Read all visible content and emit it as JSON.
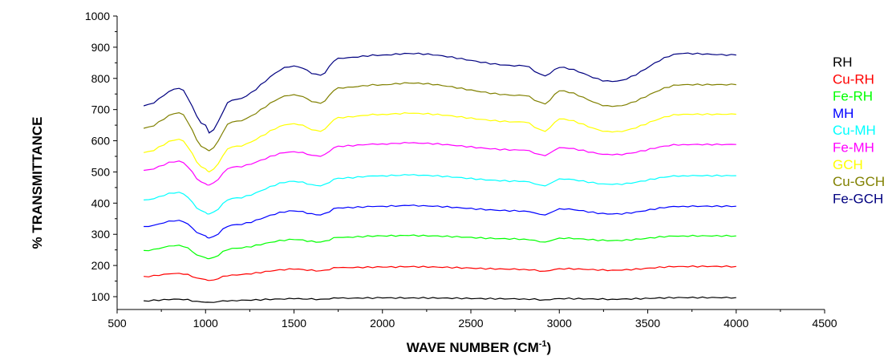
{
  "chart_data": {
    "type": "line",
    "title": "",
    "xlabel": "WAVE NUMBER (CM",
    "xlabel_sup": "-1",
    "xlabel_close": ")",
    "ylabel": "% TRANSMITTANCE",
    "xlim": [
      500,
      4500
    ],
    "ylim": [
      100,
      1000
    ],
    "x_ticks": [
      "500",
      "1000",
      "1500",
      "2000",
      "2500",
      "3000",
      "3500",
      "4000",
      "4500"
    ],
    "y_ticks": [
      "100",
      "200",
      "300",
      "400",
      "500",
      "600",
      "700",
      "800",
      "900",
      "1000"
    ],
    "grid": false,
    "legend_position": "right",
    "x": [
      650,
      850,
      1000,
      1020,
      1150,
      1500,
      1650,
      1750,
      2000,
      2150,
      2800,
      2920,
      3000,
      3300,
      3700,
      4000
    ],
    "series": [
      {
        "name": "RH",
        "color": "#000000",
        "values": [
          87,
          92,
          82,
          82,
          88,
          93,
          92,
          95,
          96,
          96,
          93,
          90,
          94,
          92,
          97,
          97
        ]
      },
      {
        "name": "Cu-RH",
        "color": "#ff0000",
        "values": [
          165,
          175,
          155,
          152,
          170,
          188,
          183,
          193,
          195,
          196,
          188,
          182,
          190,
          185,
          197,
          197
        ]
      },
      {
        "name": "Fe-RH",
        "color": "#00ff00",
        "values": [
          248,
          265,
          225,
          222,
          255,
          283,
          275,
          290,
          295,
          296,
          285,
          275,
          288,
          280,
          295,
          295
        ]
      },
      {
        "name": "MH",
        "color": "#0000ff",
        "values": [
          325,
          345,
          295,
          288,
          330,
          375,
          362,
          385,
          390,
          392,
          375,
          362,
          382,
          365,
          390,
          390
        ]
      },
      {
        "name": "Cu-MH",
        "color": "#00ffff",
        "values": [
          410,
          435,
          370,
          365,
          415,
          470,
          455,
          480,
          488,
          490,
          470,
          455,
          478,
          460,
          488,
          488
        ]
      },
      {
        "name": "Fe-MH",
        "color": "#ff00ff",
        "values": [
          505,
          535,
          462,
          458,
          515,
          565,
          550,
          583,
          590,
          593,
          570,
          552,
          578,
          555,
          588,
          588
        ]
      },
      {
        "name": "GCH",
        "color": "#ffff00",
        "values": [
          562,
          605,
          510,
          500,
          580,
          655,
          630,
          675,
          685,
          688,
          660,
          630,
          670,
          628,
          685,
          685
        ]
      },
      {
        "name": "Cu-GCH",
        "color": "#808000",
        "values": [
          640,
          690,
          575,
          568,
          660,
          748,
          720,
          770,
          780,
          785,
          745,
          718,
          760,
          710,
          780,
          780
        ]
      },
      {
        "name": "Fe-GCH",
        "color": "#000080",
        "values": [
          712,
          768,
          650,
          625,
          730,
          840,
          810,
          865,
          875,
          880,
          840,
          808,
          835,
          790,
          880,
          875
        ]
      }
    ]
  }
}
